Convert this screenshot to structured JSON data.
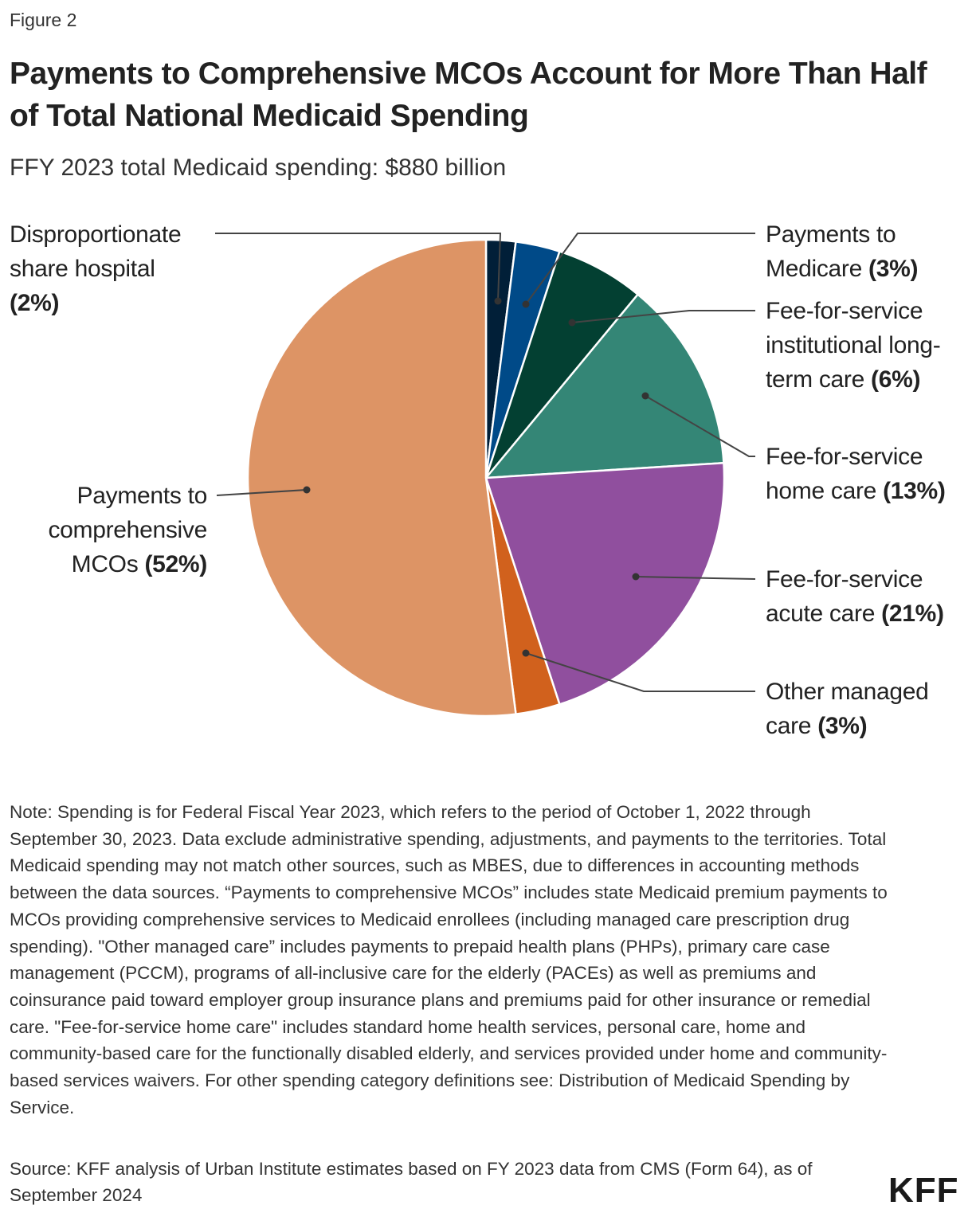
{
  "figure_label": "Figure 2",
  "title": "Payments to Comprehensive MCOs Account for More Than Half of Total National Medicaid Spending",
  "subtitle": "FFY 2023 total Medicaid spending: $880 billion",
  "chart_data": {
    "type": "pie",
    "start": "top, clockwise",
    "slices": [
      {
        "label": "Disproportionate share hospital",
        "value": 2,
        "value_label": "(2%)",
        "color": "#011f38"
      },
      {
        "label": "Payments to Medicare",
        "value": 3,
        "value_label": "(3%)",
        "color": "#004a88"
      },
      {
        "label": "Fee-for-service institutional long-term care",
        "value": 6,
        "value_label": "(6%)",
        "color": "#034032"
      },
      {
        "label": "Fee-for-service home care",
        "value": 13,
        "value_label": "(13%)",
        "color": "#348676"
      },
      {
        "label": "Fee-for-service acute care",
        "value": 21,
        "value_label": "(21%)",
        "color": "#904f9e"
      },
      {
        "label": "Other managed care",
        "value": 3,
        "value_label": "(3%)",
        "color": "#d1611d"
      },
      {
        "label": "Payments to comprehensive MCOs",
        "value": 52,
        "value_label": "(52%)",
        "color": "#dd9465"
      }
    ]
  },
  "note": "Note: Spending is for Federal Fiscal Year 2023, which refers to the period of October 1, 2022 through September 30, 2023. Data exclude administrative spending, adjustments, and payments to the territories. Total Medicaid spending may not match other sources, such as MBES, due to differences in accounting methods between the data sources. “Payments to comprehensive MCOs” includes state Medicaid premium payments to MCOs providing comprehensive services to Medicaid enrollees (including managed care prescription drug spending). \"Other managed care” includes payments to prepaid health plans (PHPs), primary care case management (PCCM), programs of all-inclusive care for the elderly (PACEs) as well as premiums and coinsurance paid toward employer group insurance plans and premiums paid for other insurance or remedial care. \"Fee-for-service home care\" includes standard home health services, personal care, home and community-based care for the functionally disabled elderly, and services provided under home and community-based services waivers. For other spending category definitions see: Distribution of Medicaid Spending by Service.",
  "source": "Source: KFF analysis of Urban Institute estimates based on FY 2023 data from CMS (Form 64), as of September 2024",
  "logo": "KFF"
}
